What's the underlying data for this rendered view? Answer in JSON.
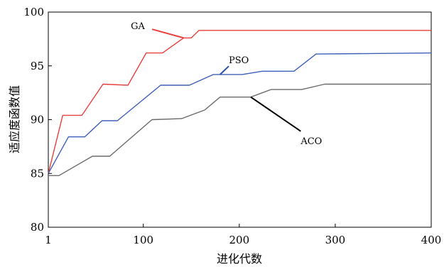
{
  "chart_data": {
    "type": "line",
    "title": "",
    "xlabel": "进化代数",
    "ylabel": "适应度函数值",
    "xlim": [
      1,
      400
    ],
    "ylim": [
      80,
      100
    ],
    "xticks": [
      1,
      100,
      200,
      300,
      400
    ],
    "xtick_labels": [
      "1",
      "100",
      "200",
      "300",
      "400"
    ],
    "yticks": [
      80,
      85,
      90,
      95,
      100
    ],
    "ytick_labels": [
      "80",
      "85",
      "90",
      "95",
      "100"
    ],
    "grid": false,
    "legend": "none",
    "series": [
      {
        "name": "GA",
        "color": "#e8413e",
        "x": [
          1,
          16,
          36,
          58,
          84,
          103,
          120,
          142,
          150,
          158,
          400
        ],
        "y": [
          85.0,
          90.4,
          90.4,
          93.3,
          93.2,
          96.2,
          96.2,
          97.6,
          97.6,
          98.3,
          98.3
        ]
      },
      {
        "name": "PSO",
        "color": "#4060b8",
        "x": [
          1,
          22,
          39,
          57,
          73,
          118,
          148,
          173,
          203,
          224,
          257,
          280,
          400
        ],
        "y": [
          85.0,
          88.4,
          88.4,
          89.9,
          89.9,
          93.2,
          93.2,
          94.2,
          94.2,
          94.5,
          94.5,
          96.1,
          96.2
        ]
      },
      {
        "name": "ACO",
        "color": "#6b6b6b",
        "x": [
          1,
          12,
          47,
          65,
          109,
          140,
          164,
          180,
          212,
          233,
          265,
          289,
          400
        ],
        "y": [
          84.8,
          84.8,
          86.6,
          86.6,
          90.0,
          90.1,
          90.9,
          92.1,
          92.1,
          92.8,
          92.8,
          93.3,
          93.3
        ]
      }
    ],
    "annotations": [
      {
        "text": "GA",
        "color": "#e8413e",
        "label_x": 87,
        "label_y": 98.8,
        "point_x": 142,
        "point_y": 97.6
      },
      {
        "text": "PSO",
        "color": "#2c4fa8",
        "label_x": 192,
        "label_y": 95.5,
        "point_x": 180,
        "point_y": 94.2
      },
      {
        "text": "ACO",
        "color": "#000000",
        "label_x": 267,
        "label_y": 88.0,
        "point_x": 212,
        "point_y": 92.1
      }
    ]
  }
}
